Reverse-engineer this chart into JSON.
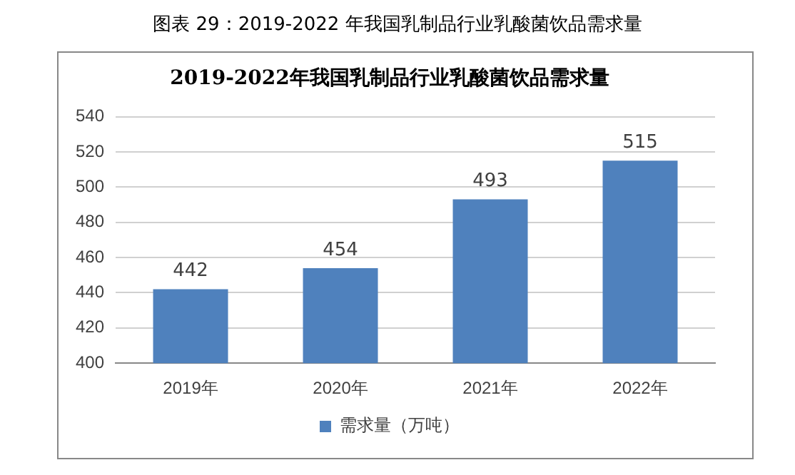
{
  "chart_data": {
    "type": "bar",
    "title": "图表 29：2019-2022 年我国乳制品行业乳酸菌饮品需求量",
    "subtitle": "2019-2022年我国乳制品行业乳酸菌饮品需求量",
    "categories": [
      "2019年",
      "2020年",
      "2021年",
      "2022年"
    ],
    "series": [
      {
        "name": "需求量（万吨）",
        "color": "#4f81bd",
        "values": [
          442,
          454,
          493,
          515
        ]
      }
    ],
    "ylim": [
      400,
      540
    ],
    "yticks": [
      400,
      420,
      440,
      460,
      480,
      500,
      520,
      540
    ],
    "grid": "y",
    "legend": "bottom",
    "data_labels": true
  }
}
